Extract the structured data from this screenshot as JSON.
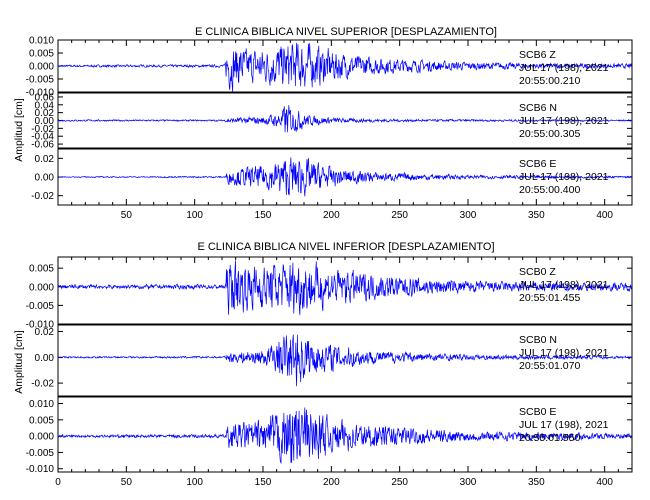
{
  "chart_data": [
    {
      "type": "line",
      "title": "E CLINICA BIBLICA NIVEL SUPERIOR [DESPLAZAMIENTO]",
      "ylabel": "Amplitud [cm]",
      "xlabel": "",
      "xlim": [
        0,
        420
      ],
      "x_ticks": [
        "50",
        "100",
        "150",
        "200",
        "250",
        "300",
        "350",
        "400"
      ],
      "grid": false,
      "line_color": "#0000ff",
      "traces": [
        {
          "station": "SCB6",
          "component": "Z",
          "date": "JUL 17 (198), 2021",
          "time": "20:55:00.210",
          "ylim": [
            -0.01,
            0.01
          ],
          "y_ticks": [
            "0.010",
            "0.005",
            "0.000",
            "-0.005",
            "-0.010"
          ],
          "onset_s": 123,
          "envelope": [
            [
              0,
              0.0004
            ],
            [
              122,
              0.0005
            ],
            [
              124,
              0.009
            ],
            [
              140,
              0.006
            ],
            [
              160,
              0.0075
            ],
            [
              175,
              0.0095
            ],
            [
              195,
              0.007
            ],
            [
              215,
              0.004
            ],
            [
              250,
              0.0025
            ],
            [
              300,
              0.0015
            ],
            [
              350,
              0.001
            ],
            [
              420,
              0.0008
            ]
          ]
        },
        {
          "station": "SCB6",
          "component": "N",
          "date": "JUL 17 (198), 2021",
          "time": "20:55:00.305",
          "ylim": [
            -0.07,
            0.07
          ],
          "y_ticks": [
            "0.06",
            "0.04",
            "0.02",
            "0.00",
            "-0.02",
            "-0.04",
            "-0.06"
          ],
          "onset_s": 123,
          "envelope": [
            [
              0,
              0.002
            ],
            [
              122,
              0.002
            ],
            [
              124,
              0.006
            ],
            [
              150,
              0.01
            ],
            [
              163,
              0.02
            ],
            [
              167,
              0.048
            ],
            [
              172,
              0.03
            ],
            [
              185,
              0.012
            ],
            [
              210,
              0.005
            ],
            [
              260,
              0.003
            ],
            [
              420,
              0.002
            ]
          ]
        },
        {
          "station": "SCB6",
          "component": "E",
          "date": "JUL 17 (198), 2021",
          "time": "20:55:00.400",
          "ylim": [
            -0.03,
            0.03
          ],
          "y_ticks": [
            "0.02",
            "0.00",
            "-0.02"
          ],
          "onset_s": 123,
          "envelope": [
            [
              0,
              0.0005
            ],
            [
              122,
              0.0008
            ],
            [
              125,
              0.008
            ],
            [
              150,
              0.012
            ],
            [
              170,
              0.022
            ],
            [
              180,
              0.02
            ],
            [
              200,
              0.01
            ],
            [
              230,
              0.005
            ],
            [
              300,
              0.002
            ],
            [
              420,
              0.001
            ]
          ]
        }
      ]
    },
    {
      "type": "line",
      "title": "E CLINICA BIBLICA NIVEL INFERIOR [DESPLAZAMIENTO]",
      "ylabel": "Amplitud [cm]",
      "xlabel": "",
      "xlim": [
        0,
        420
      ],
      "x_ticks": [
        "0",
        "50",
        "100",
        "150",
        "200",
        "250",
        "300",
        "350",
        "400"
      ],
      "grid": false,
      "line_color": "#0000ff",
      "traces": [
        {
          "station": "SCB0",
          "component": "Z",
          "date": "JUL 17 (198), 2021",
          "time": "20:55:01.455",
          "ylim": [
            -0.01,
            0.008
          ],
          "y_ticks": [
            "0.005",
            "0.000",
            "-0.005",
            "-0.010"
          ],
          "onset_s": 123,
          "envelope": [
            [
              0,
              0.0005
            ],
            [
              122,
              0.0006
            ],
            [
              124,
              0.007
            ],
            [
              150,
              0.006
            ],
            [
              175,
              0.0075
            ],
            [
              200,
              0.005
            ],
            [
              240,
              0.003
            ],
            [
              300,
              0.0015
            ],
            [
              420,
              0.001
            ]
          ]
        },
        {
          "station": "SCB0",
          "component": "N",
          "date": "JUL 17 (198), 2021",
          "time": "20:55:01.070",
          "ylim": [
            -0.03,
            0.025
          ],
          "y_ticks": [
            "0.02",
            "0.00",
            "-0.02"
          ],
          "onset_s": 123,
          "envelope": [
            [
              0,
              0.0006
            ],
            [
              122,
              0.0008
            ],
            [
              125,
              0.004
            ],
            [
              150,
              0.006
            ],
            [
              168,
              0.018
            ],
            [
              175,
              0.022
            ],
            [
              190,
              0.012
            ],
            [
              230,
              0.005
            ],
            [
              300,
              0.002
            ],
            [
              420,
              0.001
            ]
          ]
        },
        {
          "station": "SCB0",
          "component": "E",
          "date": "JUL 17 (198), 2021",
          "time": "20:55:01.550",
          "ylim": [
            -0.011,
            0.012
          ],
          "y_ticks": [
            "0.010",
            "0.005",
            "0.000",
            "-0.005",
            "-0.010"
          ],
          "onset_s": 123,
          "envelope": [
            [
              0,
              0.0004
            ],
            [
              122,
              0.0005
            ],
            [
              125,
              0.004
            ],
            [
              150,
              0.0045
            ],
            [
              175,
              0.011
            ],
            [
              200,
              0.005
            ],
            [
              240,
              0.003
            ],
            [
              300,
              0.0015
            ],
            [
              420,
              0.0008
            ]
          ]
        }
      ]
    }
  ]
}
